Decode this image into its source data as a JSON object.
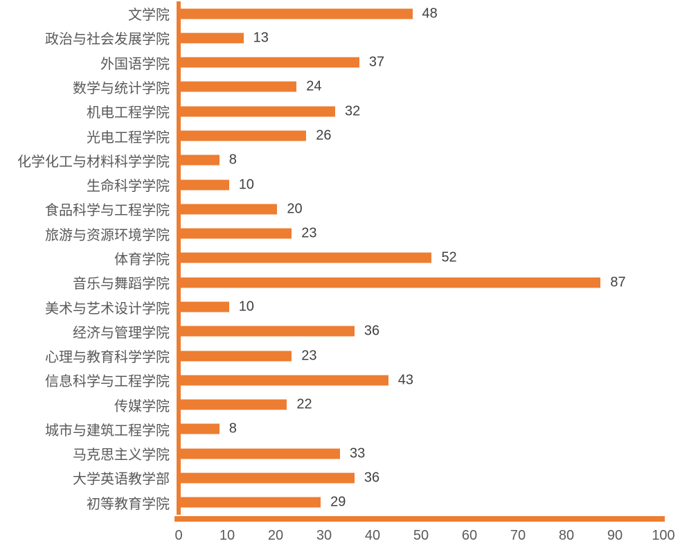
{
  "chart_data": {
    "type": "bar",
    "orientation": "horizontal",
    "title": "",
    "xlabel": "",
    "ylabel": "",
    "categories": [
      "文学院",
      "政治与社会发展学院",
      "外国语学院",
      "数学与统计学院",
      "机电工程学院",
      "光电工程学院",
      "化学化工与材料科学学院",
      "生命科学学院",
      "食品科学与工程学院",
      "旅游与资源环境学院",
      "体育学院",
      "音乐与舞蹈学院",
      "美术与艺术设计学院",
      "经济与管理学院",
      "心理与教育科学学院",
      "信息科学与工程学院",
      "传媒学院",
      "城市与建筑工程学院",
      "马克思主义学院",
      "大学英语教学部",
      "初等教育学院"
    ],
    "values": [
      48,
      13,
      37,
      24,
      32,
      26,
      8,
      10,
      20,
      23,
      52,
      87,
      10,
      36,
      23,
      43,
      22,
      8,
      33,
      36,
      29
    ],
    "xlim": [
      0,
      100
    ],
    "x_ticks": [
      0,
      10,
      20,
      30,
      40,
      50,
      60,
      70,
      80,
      90,
      100
    ],
    "data_labels": true,
    "grid": false,
    "legend": false,
    "colors": {
      "bar": "#ED7D31",
      "axis_line": "#ED7D31",
      "category_label": "#595959",
      "value_label": "#404040",
      "tick_label": "#595959"
    }
  }
}
